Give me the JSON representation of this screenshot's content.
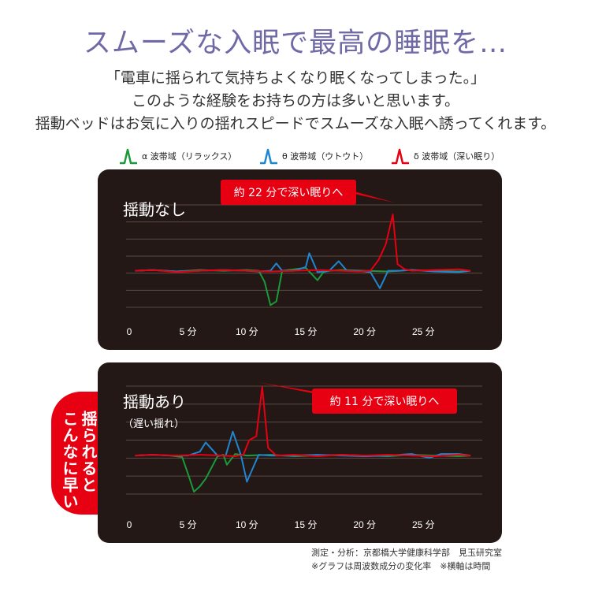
{
  "headline": "スムーズな入眠で最高の睡眠を…",
  "intro": [
    "「電車に揺られて気持ちよくなり眠くなってしまった。」",
    "このような経験をお持ちの方は多いと思います。",
    "揺動ベッドはお気に入りの揺れスピードでスムーズな入眠へ誘ってくれます。"
  ],
  "legend": [
    {
      "label": "α 波帯域（リラックス）",
      "color": "#1a9a3a",
      "icon": "wave-spike-icon"
    },
    {
      "label": "θ 波帯域（ウトウト）",
      "color": "#1f86d0",
      "icon": "wave-spike-icon"
    },
    {
      "label": "δ 波帯域（深い眠り）",
      "color": "#e60012",
      "icon": "wave-spike-icon"
    }
  ],
  "side_badge": {
    "line1": "揺られると",
    "line2": "こんなに早い",
    "color": "#e60012"
  },
  "footnote": {
    "line1": "測定・分析：京都橋大学健康科学部　見玉研究室",
    "line2": "※グラフは周波数成分の変化率　※横軸は時間"
  },
  "chart_data": [
    {
      "type": "line",
      "title": "揺動なし",
      "subtitle": "",
      "annotation": "約 22 分で深い眠りへ",
      "xlim": [
        0,
        30
      ],
      "ylim": [
        -5,
        9
      ],
      "x_ticks": [
        0,
        5,
        10,
        15,
        20,
        25
      ],
      "x_tick_labels": [
        "0",
        "5 分",
        "10 分",
        "15 分",
        "20 分",
        "25 分"
      ],
      "grid": true,
      "series": [
        {
          "name": "α 波帯域（リラックス）",
          "color": "#1a9a3a",
          "x": [
            0.5,
            2,
            4,
            6,
            8,
            10,
            11,
            11.5,
            12,
            12.5,
            13,
            14,
            15,
            16,
            16.5,
            17,
            18,
            20,
            22,
            24,
            26,
            28,
            29
          ],
          "y": [
            0,
            0.1,
            -0.1,
            0.1,
            0,
            0.1,
            0,
            -1.5,
            -4.7,
            -4.2,
            0,
            0.2,
            0.4,
            -1.3,
            -0.2,
            0,
            0.1,
            0,
            -0.1,
            0.1,
            0,
            -0.1,
            0
          ]
        },
        {
          "name": "θ 波帯域（ウトウト）",
          "color": "#1f86d0",
          "x": [
            0.5,
            2,
            4,
            6,
            8,
            10,
            11,
            12,
            12.5,
            13,
            14,
            15,
            15.3,
            16,
            17,
            17.8,
            18.5,
            19.5,
            20.5,
            21.3,
            22,
            23,
            24,
            26,
            28,
            29
          ],
          "y": [
            0,
            0.1,
            -0.1,
            0,
            0.1,
            0,
            -0.1,
            0,
            1.0,
            0,
            0,
            0.5,
            2.4,
            -0.2,
            0,
            1.3,
            0,
            0,
            -0.2,
            -2.4,
            0,
            0,
            0.1,
            -0.1,
            -0.2,
            0
          ]
        },
        {
          "name": "δ 波帯域（深い眠り）",
          "color": "#e60012",
          "x": [
            0.5,
            2,
            4,
            6,
            8,
            10,
            12,
            14,
            16,
            18,
            19.5,
            20.5,
            21.2,
            21.8,
            22.4,
            22.8,
            23.4,
            24,
            26,
            28,
            29
          ],
          "y": [
            0,
            0.1,
            -0.2,
            0,
            0.1,
            0,
            -0.1,
            0,
            0.1,
            0,
            -0.1,
            0,
            1.5,
            3.6,
            7.7,
            0.9,
            0.2,
            0,
            0.1,
            0.2,
            0
          ]
        }
      ]
    },
    {
      "type": "line",
      "title": "揺動あり",
      "subtitle": "（遅い揺れ）",
      "annotation": "約 11 分で深い眠りへ",
      "xlim": [
        0,
        30
      ],
      "ylim": [
        -5,
        9
      ],
      "x_ticks": [
        0,
        5,
        10,
        15,
        20,
        25
      ],
      "x_tick_labels": [
        "0",
        "5 分",
        "10 分",
        "15 分",
        "20 分",
        "25 分"
      ],
      "grid": true,
      "series": [
        {
          "name": "α 波帯域（リラックス）",
          "color": "#1a9a3a",
          "x": [
            0.5,
            2,
            3.5,
            4.5,
            5,
            5.5,
            6,
            6.5,
            7.5,
            8,
            8.3,
            9,
            10,
            12,
            14,
            16,
            18,
            20,
            22,
            24,
            26,
            28,
            29
          ],
          "y": [
            0,
            0.1,
            0,
            -0.2,
            -2.4,
            -4.7,
            -4.0,
            -3.0,
            -0.1,
            0.1,
            -1.2,
            0.2,
            0,
            0.1,
            -0.1,
            0,
            0.1,
            0,
            -0.1,
            0.1,
            0,
            -0.1,
            0
          ]
        },
        {
          "name": "θ 波帯域（ウトウト）",
          "color": "#1f86d0",
          "x": [
            0.5,
            2,
            3.5,
            5,
            6,
            6.5,
            7.5,
            8.2,
            8.8,
            9.5,
            10,
            11,
            12,
            14,
            16,
            18,
            20,
            22,
            24,
            25.5,
            26.5,
            28,
            29
          ],
          "y": [
            0,
            0.1,
            0,
            0,
            0.5,
            1.7,
            0,
            0,
            3.1,
            0,
            -3.4,
            0.1,
            0,
            0,
            0.1,
            0,
            -0.1,
            0,
            0.2,
            -0.3,
            0.2,
            0.2,
            0
          ]
        },
        {
          "name": "δ 波帯域（深い眠り）",
          "color": "#e60012",
          "x": [
            0.5,
            2,
            4,
            6,
            8,
            9,
            9.7,
            10.2,
            10.8,
            11.3,
            11.8,
            12.5,
            14,
            16,
            18,
            20,
            22,
            24,
            26,
            28,
            29
          ],
          "y": [
            0,
            0.1,
            0,
            0.1,
            0,
            -0.1,
            0.1,
            2.0,
            2.5,
            8.9,
            1.0,
            0,
            0.1,
            -0.1,
            0.1,
            0,
            0.1,
            0,
            -0.1,
            0.1,
            0
          ]
        }
      ]
    }
  ]
}
